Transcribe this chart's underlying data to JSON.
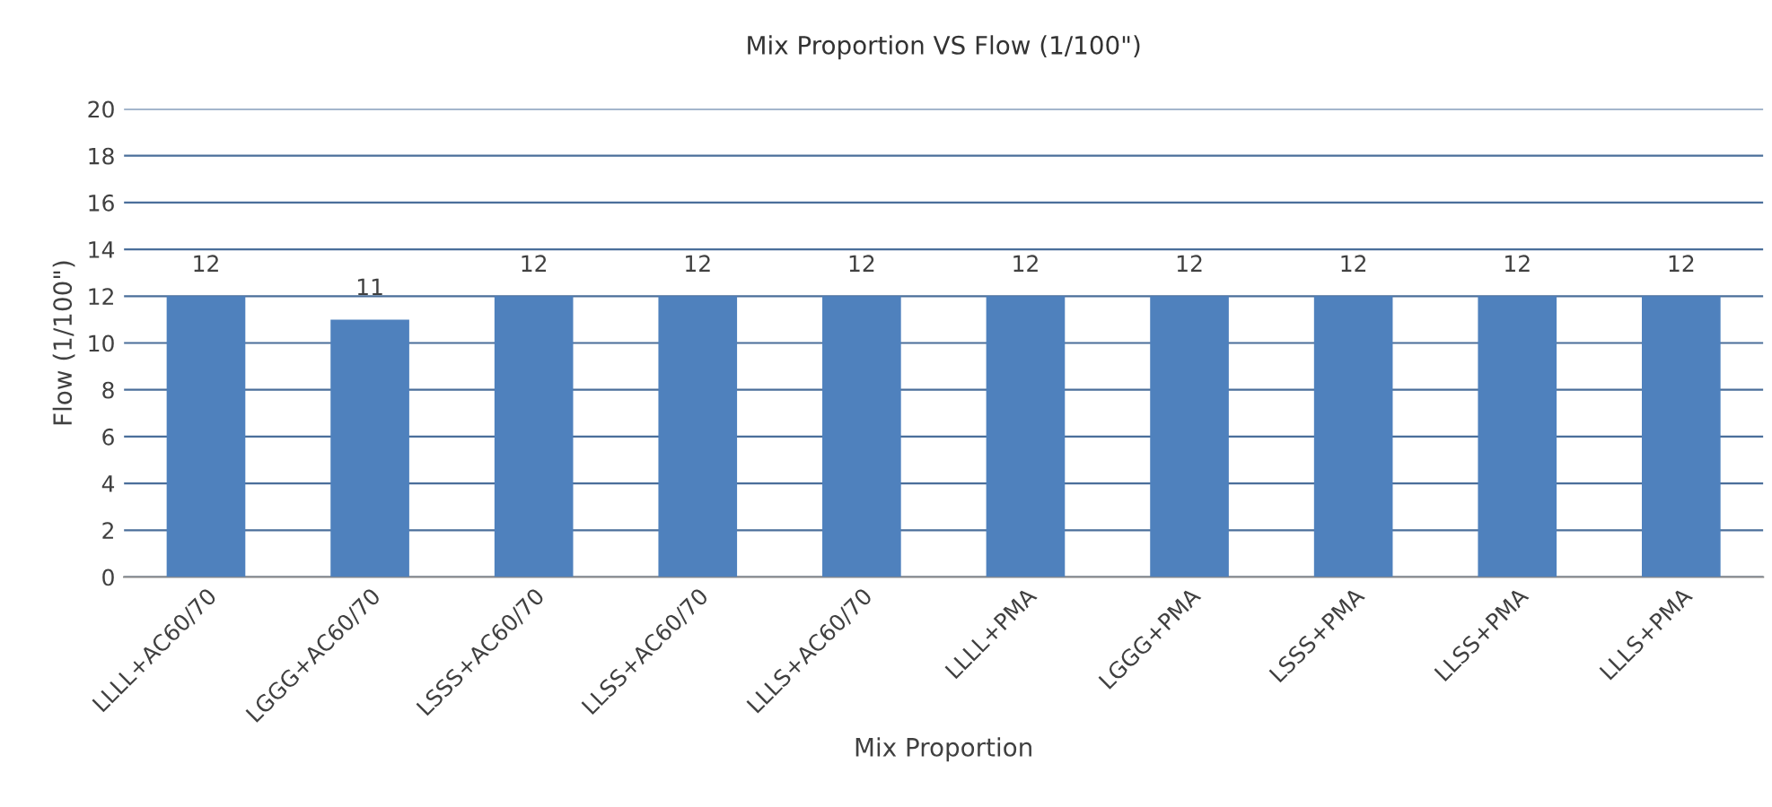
{
  "chart_data": {
    "type": "bar",
    "title": "Mix Proportion VS Flow (1/100\")",
    "xlabel": "Mix Proportion",
    "ylabel": "Flow (1/100\")",
    "categories": [
      "LLLL+AC60/70",
      "LGGG+AC60/70",
      "LSSS+AC60/70",
      "LLSS+AC60/70",
      "LLLS+AC60/70",
      "LLLL+PMA",
      "LGGG+PMA",
      "LSSS+PMA",
      "LLSS+PMA",
      "LLLS+PMA"
    ],
    "values": [
      12,
      11,
      12,
      12,
      12,
      12,
      12,
      12,
      12,
      12
    ],
    "color": "#4f81bd",
    "ylim": [
      0,
      20
    ],
    "yticks": [
      0,
      2,
      4,
      6,
      8,
      10,
      12,
      14,
      16,
      18,
      20
    ],
    "grid": "y",
    "data_labels": true
  }
}
